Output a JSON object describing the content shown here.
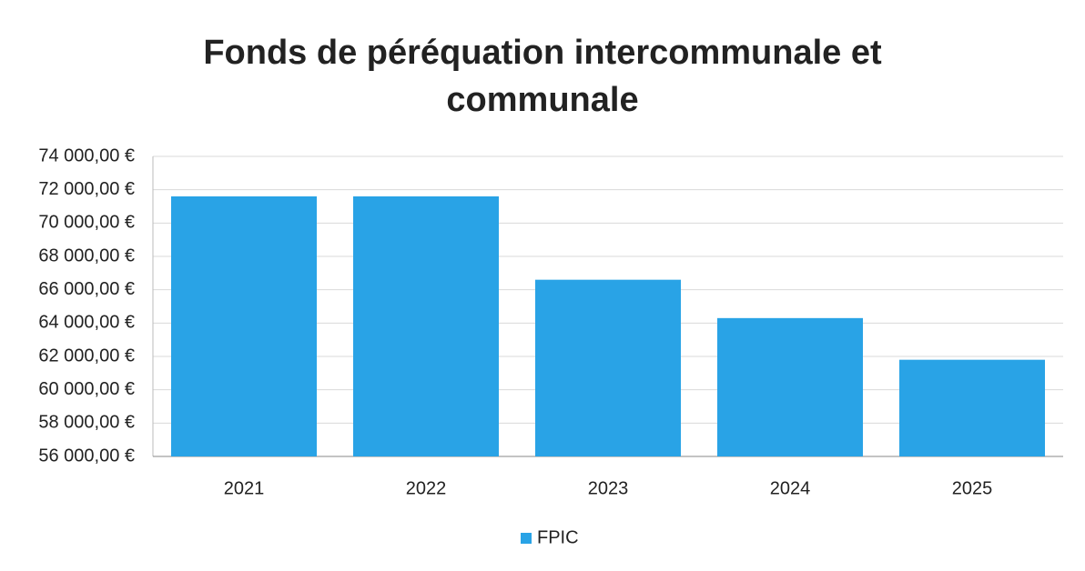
{
  "chart_data": {
    "type": "bar",
    "title": "Fonds de péréquation intercommunale et communale",
    "categories": [
      "2021",
      "2022",
      "2023",
      "2024",
      "2025"
    ],
    "series": [
      {
        "name": "FPIC",
        "color": "#29a3e6",
        "values": [
          71600,
          71600,
          66600,
          64300,
          61800
        ]
      }
    ],
    "ylim": [
      56000,
      74000
    ],
    "yticks": [
      {
        "value": 56000,
        "label": "56 000,00 €"
      },
      {
        "value": 58000,
        "label": "58 000,00 €"
      },
      {
        "value": 60000,
        "label": "60 000,00 €"
      },
      {
        "value": 62000,
        "label": "62 000,00 €"
      },
      {
        "value": 64000,
        "label": "64 000,00 €"
      },
      {
        "value": 66000,
        "label": "66 000,00 €"
      },
      {
        "value": 68000,
        "label": "68 000,00 €"
      },
      {
        "value": 70000,
        "label": "70 000,00 €"
      },
      {
        "value": 72000,
        "label": "72 000,00 €"
      },
      {
        "value": 74000,
        "label": "74 000,00 €"
      }
    ],
    "grid": true,
    "legend": "bottom"
  }
}
